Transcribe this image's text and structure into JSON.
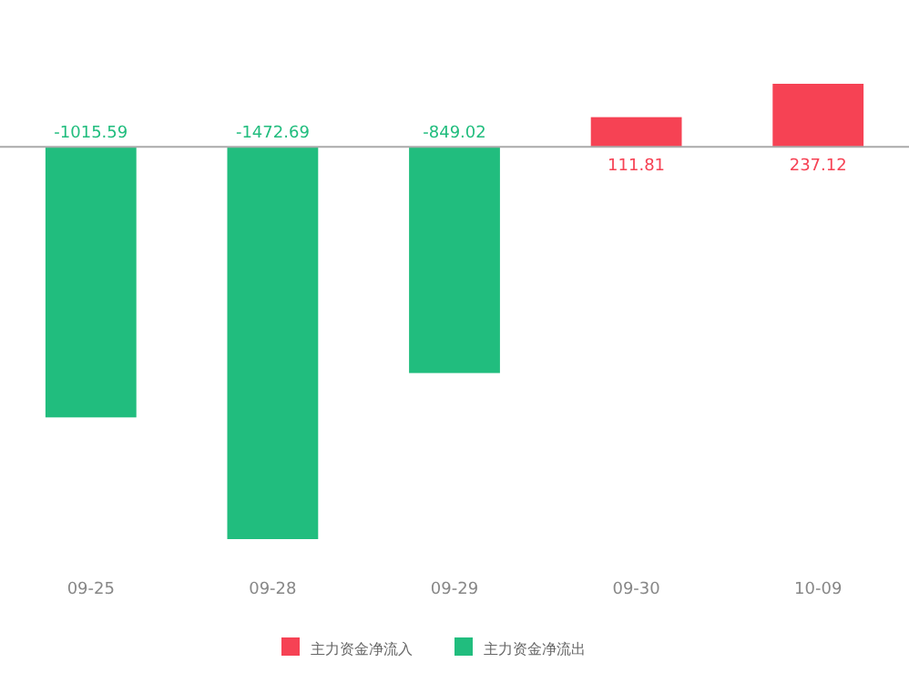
{
  "chart_data": {
    "type": "bar",
    "stacked": true,
    "data_labels": true,
    "legend": "bottom",
    "categories": [
      "09-25",
      "09-28",
      "09-29",
      "09-30",
      "10-09"
    ],
    "series": [
      {
        "name": "主力资金净流入",
        "color": "#f64254",
        "values": [
          null,
          null,
          null,
          111.81,
          237.12
        ]
      },
      {
        "name": "主力资金净流出",
        "color": "#21bd7e",
        "values": [
          -1015.59,
          -1472.69,
          -849.02,
          null,
          null
        ]
      }
    ]
  }
}
